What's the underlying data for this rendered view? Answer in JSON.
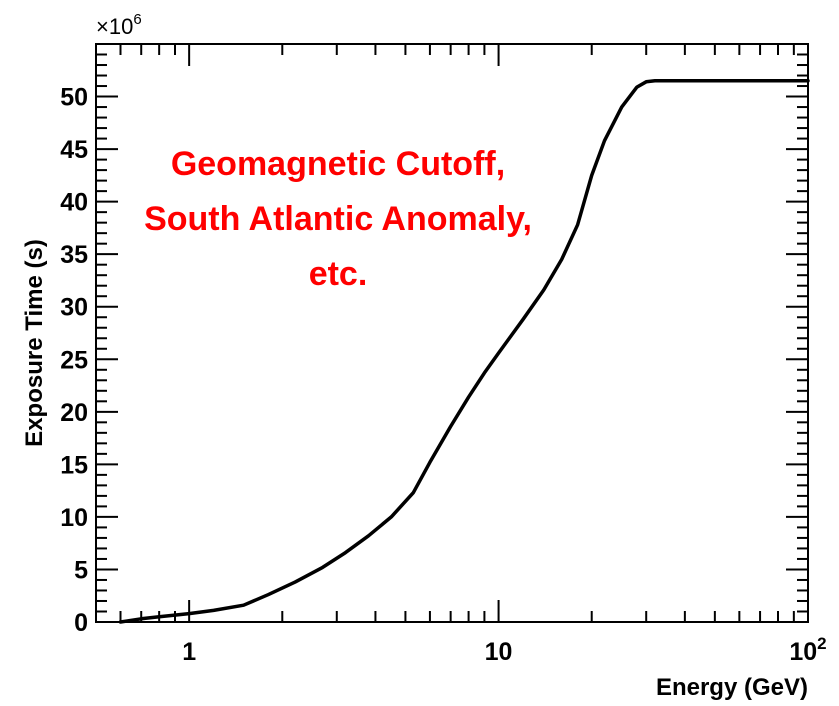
{
  "chart_data": {
    "type": "line",
    "title": "",
    "xlabel": "Energy (GeV)",
    "ylabel": "Exposure Time (s)",
    "y_multiplier_label": "×10",
    "y_multiplier_exponent": "6",
    "x_scale": "log",
    "xlim": [
      0.5,
      100
    ],
    "ylim": [
      0,
      55
    ],
    "y_unit_factor": 1000000,
    "x_ticks": [
      {
        "value": 1,
        "base": "1",
        "exp": ""
      },
      {
        "value": 10,
        "base": "10",
        "exp": ""
      },
      {
        "value": 100,
        "base": "10",
        "exp": "2"
      }
    ],
    "y_ticks": [
      0,
      5,
      10,
      15,
      20,
      25,
      30,
      35,
      40,
      45,
      50
    ],
    "grid": false,
    "annotation": {
      "lines": [
        "Geomagnetic Cutoff,",
        "South Atlantic Anomaly,",
        "etc."
      ],
      "color": "#ff0000"
    },
    "series": [
      {
        "color": "#000000",
        "x": [
          0.6,
          0.7,
          0.8,
          1.0,
          1.2,
          1.5,
          1.8,
          2.2,
          2.7,
          3.2,
          3.8,
          4.5,
          5.3,
          6.0,
          7.0,
          8.0,
          9.0,
          10.0,
          12.0,
          14.0,
          16.0,
          18.0,
          20.0,
          22.0,
          25.0,
          28.0,
          30.0,
          32.0,
          40.0,
          60.0,
          100.0
        ],
        "y": [
          0.0,
          0.3,
          0.5,
          0.8,
          1.1,
          1.6,
          2.6,
          3.8,
          5.2,
          6.6,
          8.2,
          10.0,
          12.3,
          15.2,
          18.6,
          21.4,
          23.7,
          25.6,
          28.8,
          31.6,
          34.5,
          37.8,
          42.5,
          45.8,
          49.0,
          50.9,
          51.4,
          51.5,
          51.5,
          51.5,
          51.5
        ]
      }
    ]
  }
}
